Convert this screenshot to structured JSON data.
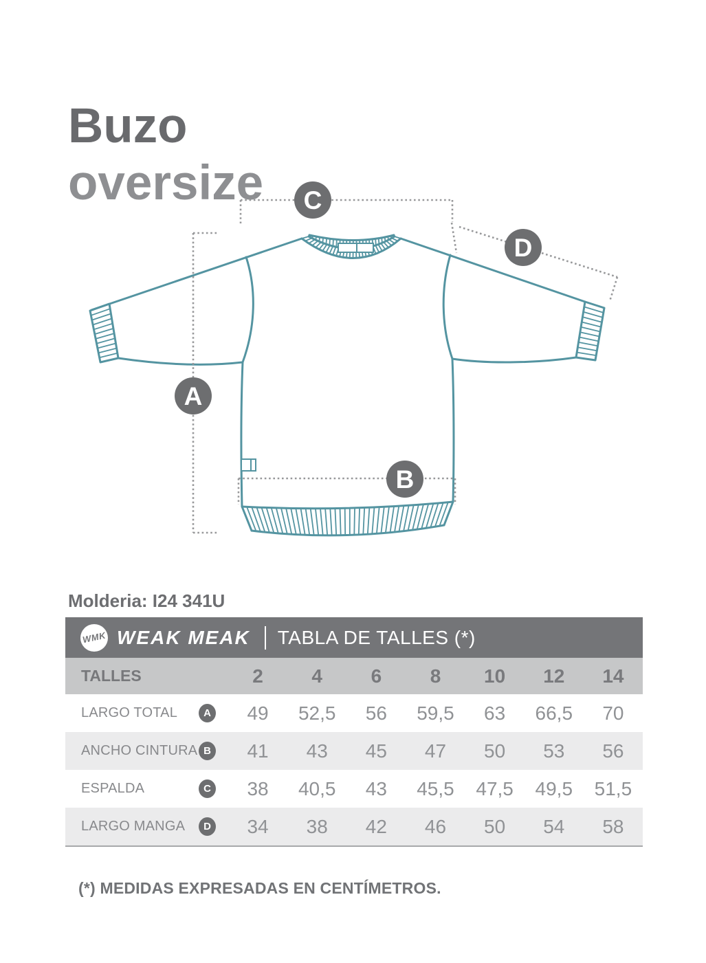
{
  "page": {
    "title_line1": "Buzo",
    "title_line2": "oversize",
    "pattern_label": "Molderia: I24 341U",
    "footnote": "(*) MEDIDAS EXPRESADAS EN CENTÍMETROS."
  },
  "diagram": {
    "garment": "buzo-oversize-sweatshirt",
    "markers": {
      "a": "A",
      "b": "B",
      "c": "C",
      "d": "D"
    }
  },
  "table": {
    "logo_monogram": "WMK",
    "brand": "WEAK MEAK",
    "title": "TABLA DE TALLES (*)",
    "sizes_label": "TALLES",
    "sizes": [
      "2",
      "4",
      "6",
      "8",
      "10",
      "12",
      "14"
    ],
    "rows": [
      {
        "label": "LARGO TOTAL",
        "marker": "A",
        "values": [
          "49",
          "52,5",
          "56",
          "59,5",
          "63",
          "66,5",
          "70"
        ]
      },
      {
        "label": "ANCHO CINTURA",
        "marker": "B",
        "values": [
          "41",
          "43",
          "45",
          "47",
          "50",
          "53",
          "56"
        ]
      },
      {
        "label": "ESPALDA",
        "marker": "C",
        "values": [
          "38",
          "40,5",
          "43",
          "45,5",
          "47,5",
          "49,5",
          "51,5"
        ]
      },
      {
        "label": "LARGO MANGA",
        "marker": "D",
        "values": [
          "34",
          "38",
          "42",
          "46",
          "50",
          "54",
          "58"
        ]
      }
    ]
  },
  "colors": {
    "garment_teal": "#5494a1",
    "marker_gray": "#6d6e70",
    "header_gray": "#747578",
    "dotted_gray": "#97989a"
  }
}
